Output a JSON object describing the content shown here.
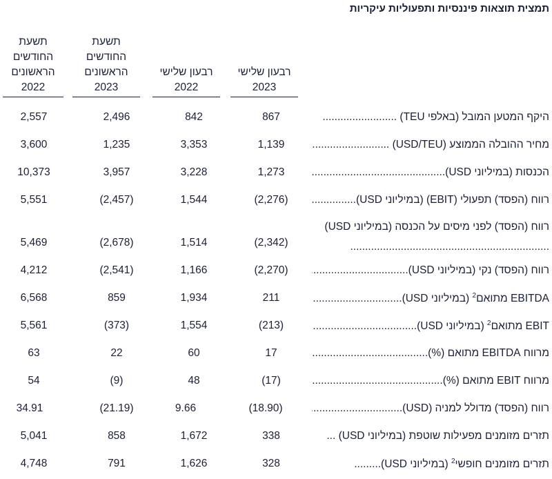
{
  "title": "תמצית תוצאות פיננסיות ותפעוליות עיקריות",
  "columns": [
    {
      "lines": [
        "רבעון שלישי",
        "2023"
      ]
    },
    {
      "lines": [
        "רבעון שלישי",
        "2022"
      ]
    },
    {
      "lines": [
        "תשעת",
        "החודשים",
        "הראשונים",
        "2023"
      ]
    },
    {
      "lines": [
        "תשעת",
        "החודשים",
        "הראשונים",
        "2022"
      ]
    }
  ],
  "rows": [
    {
      "label": "היקף המטען המובל (באלפי TEU)",
      "values": [
        "867",
        "842",
        "2,496",
        "2,557"
      ]
    },
    {
      "label": "מחיר ההובלה הממוצע (USD/TEU)",
      "values": [
        "1,139",
        "3,353",
        "1,235",
        "3,600"
      ]
    },
    {
      "label": "הכנסות (במיליוני USD)",
      "values": [
        "1,273",
        "3,228",
        "3,957",
        "10,373"
      ]
    },
    {
      "label": "רווח (הפסד) תפעולי (EBIT) (במיליוני USD)",
      "values": [
        "(2,276)",
        "1,544",
        "(2,457)",
        "5,551"
      ]
    },
    {
      "label": "רווח (הפסד) לפני מיסים על הכנסה (במיליוני USD)",
      "values": [
        "(2,342)",
        "1,514",
        "(2,678)",
        "5,469"
      ]
    },
    {
      "label": "רווח (הפסד) נקי (במיליוני USD)",
      "values": [
        "(2,270)",
        "1,166",
        "(2,541)",
        "4,212"
      ]
    },
    {
      "label": "EBITDA מתואם",
      "sup": "2",
      "label_after": " (במיליוני USD)",
      "values": [
        "211",
        "1,934",
        "859",
        "6,568"
      ]
    },
    {
      "label": "EBIT מתואם",
      "sup": "2",
      "label_after": " (במיליוני USD)",
      "values": [
        "(213)",
        "1,554",
        "(373)",
        "5,561"
      ]
    },
    {
      "label": "מרווח EBITDA מתואם (%)",
      "values": [
        "17",
        "60",
        "22",
        "63"
      ]
    },
    {
      "label": "מרווח EBIT מתואם (%)",
      "values": [
        "(17)",
        "48",
        "(9)",
        "54"
      ]
    },
    {
      "label": "רווח (הפסד) מדולל למניה (USD)",
      "values": [
        "(18.90)",
        "9.66",
        "(21.19)",
        "34.91"
      ]
    },
    {
      "label": "תזרים מזומנים מפעילות שוטפת (במיליוני USD)",
      "values": [
        "338",
        "1,672",
        "858",
        "5,041"
      ]
    },
    {
      "label": "תזרים מזומנים חופשי",
      "sup": "2",
      "label_after": " (במיליוני USD)",
      "values": [
        "328",
        "1,626",
        "791",
        "4,748"
      ]
    }
  ]
}
